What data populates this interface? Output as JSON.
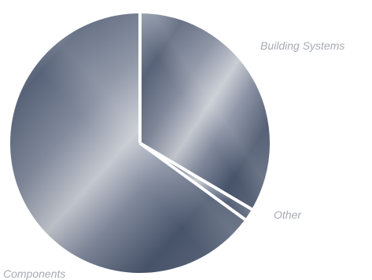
{
  "chart_data": {
    "type": "pie",
    "title": "",
    "slices": [
      {
        "label": "Building Systems",
        "value": 33.5
      },
      {
        "label": "Other",
        "value": 1.5
      },
      {
        "label": "Components",
        "value": 65.0
      }
    ]
  },
  "colors": {
    "slice_dark": "#3f4d66",
    "slice_light": "#b9bdc6",
    "separator": "#ffffff",
    "label_text": "#a7abb3"
  }
}
